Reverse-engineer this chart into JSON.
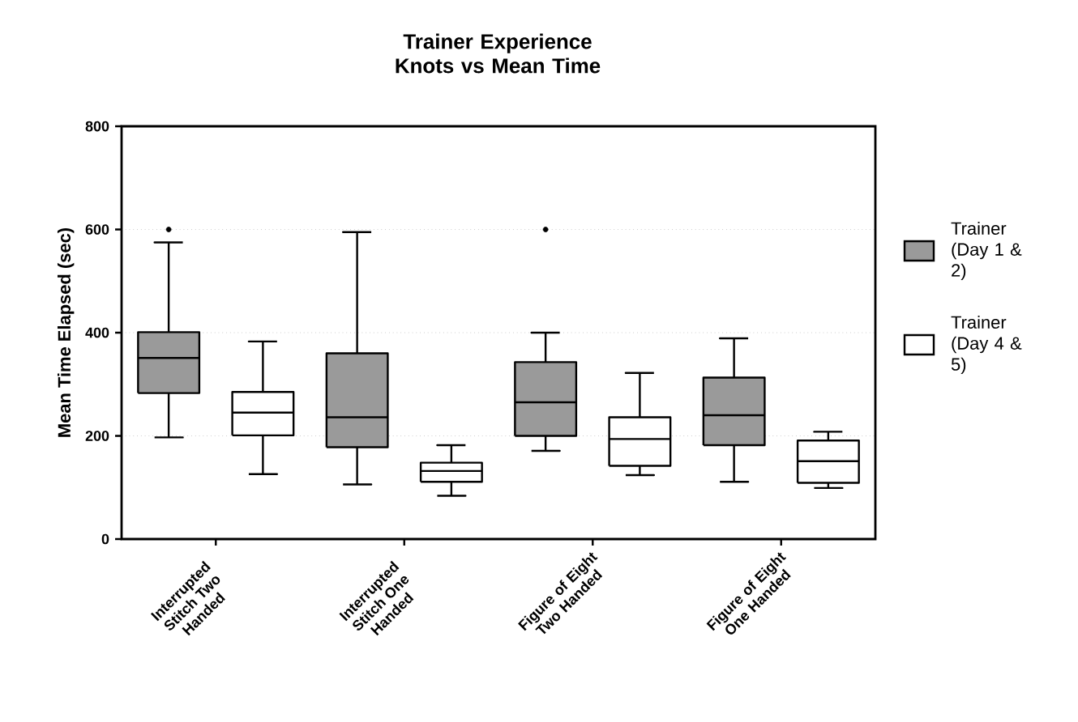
{
  "chart_data": {
    "type": "box",
    "title": "Trainer Experience Knots vs Mean Time",
    "ylabel": "Mean Time Elapsed (sec)",
    "categories": [
      "Interrupted Stitch Two Handed",
      "Interrupted Stitch One Handed",
      "Figure of Eight Two Handed",
      "Figure of Eight One Handed"
    ],
    "series": [
      {
        "name": "Trainer (Day 1 & 2)",
        "color": "#9a9a9a",
        "boxes": [
          {
            "low": 197,
            "q1": 283,
            "median": 351,
            "q3": 401,
            "high": 575,
            "outliers": [
              600
            ]
          },
          {
            "low": 106,
            "q1": 178,
            "median": 236,
            "q3": 360,
            "high": 595
          },
          {
            "low": 171,
            "q1": 200,
            "median": 265,
            "q3": 343,
            "high": 400,
            "outliers": [
              600
            ]
          },
          {
            "low": 111,
            "q1": 182,
            "median": 240,
            "q3": 313,
            "high": 389
          }
        ]
      },
      {
        "name": "Trainer (Day 4 & 5)",
        "color": "#ffffff",
        "boxes": [
          {
            "low": 126,
            "q1": 201,
            "median": 245,
            "q3": 285,
            "high": 383
          },
          {
            "low": 84,
            "q1": 111,
            "median": 132,
            "q3": 148,
            "high": 182
          },
          {
            "low": 124,
            "q1": 142,
            "median": 194,
            "q3": 236,
            "high": 322
          },
          {
            "low": 99,
            "q1": 109,
            "median": 151,
            "q3": 191,
            "high": 208
          }
        ]
      }
    ],
    "ylim": [
      0,
      800
    ],
    "yticks": [
      0,
      200,
      400,
      600,
      800
    ],
    "grid": "y",
    "legend": "right"
  }
}
